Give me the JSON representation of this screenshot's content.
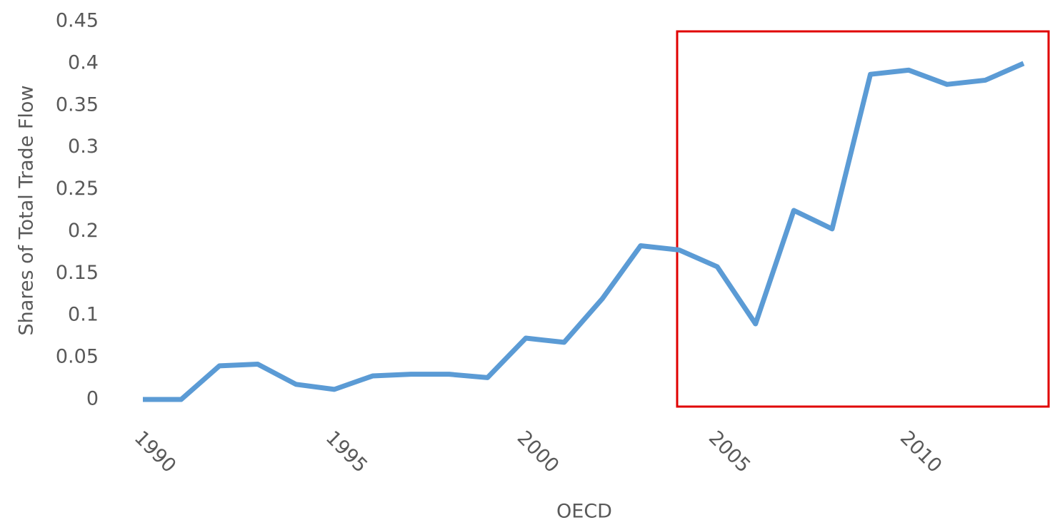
{
  "chart_data": {
    "type": "line",
    "y_label": "Shares of Total Trade Flow",
    "x_label": "OECD",
    "x": [
      1990,
      1991,
      1992,
      1993,
      1994,
      1995,
      1996,
      1997,
      1998,
      1999,
      2000,
      2001,
      2002,
      2003,
      2004,
      2005,
      2006,
      2007,
      2008,
      2009,
      2010,
      2011,
      2012,
      2013
    ],
    "series": [
      {
        "color": "#5b9bd5",
        "values": [
          0,
          0,
          0.04,
          0.042,
          0.018,
          0.012,
          0.028,
          0.03,
          0.03,
          0.026,
          0.073,
          0.068,
          0.12,
          0.183,
          0.178,
          0.158,
          0.09,
          0.225,
          0.203,
          0.387,
          0.392,
          0.375,
          0.38,
          0.4
        ]
      }
    ],
    "xlim": [
      1990,
      2013
    ],
    "xticks": [
      1990,
      1995,
      2000,
      2005,
      2010
    ],
    "ylim": [
      0,
      0.45
    ],
    "yticks": [
      0,
      0.05,
      0.1,
      0.15,
      0.2,
      0.25,
      0.3,
      0.35,
      0.4,
      0.45
    ],
    "grid": false
  }
}
